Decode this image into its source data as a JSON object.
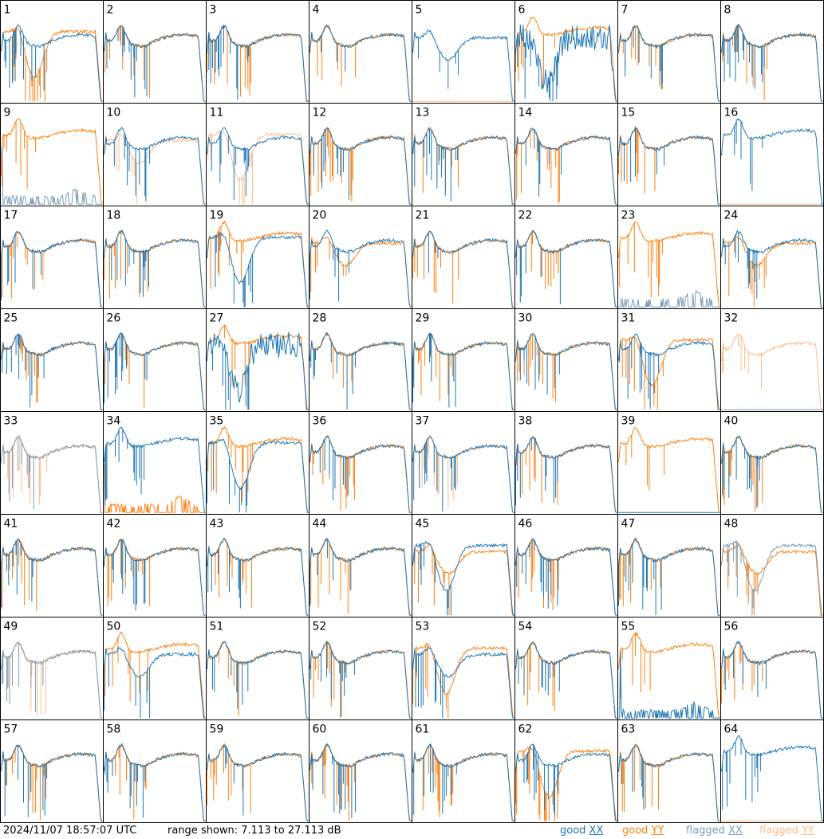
{
  "chart_data": {
    "type": "line",
    "panels": [
      {
        "label": "1",
        "xx": "good",
        "yy": "good",
        "xx_shape": "standard",
        "yy_shape": "dip"
      },
      {
        "label": "2",
        "xx": "good",
        "yy": "good",
        "xx_shape": "standard",
        "yy_shape": "standard"
      },
      {
        "label": "3",
        "xx": "good",
        "yy": "good",
        "xx_shape": "standard",
        "yy_shape": "standard"
      },
      {
        "label": "4",
        "xx": "good",
        "yy": "good",
        "xx_shape": "standard",
        "yy_shape": "standard"
      },
      {
        "label": "5",
        "xx": "good",
        "yy": "flagged",
        "xx_shape": "dip_mild",
        "yy_shape": "flat_low"
      },
      {
        "label": "6",
        "xx": "good",
        "yy": "good",
        "xx_shape": "noisy_dip",
        "yy_shape": "standard_high"
      },
      {
        "label": "7",
        "xx": "good",
        "yy": "good",
        "xx_shape": "standard",
        "yy_shape": "standard"
      },
      {
        "label": "8",
        "xx": "good",
        "yy": "good",
        "xx_shape": "standard",
        "yy_shape": "standard"
      },
      {
        "label": "9",
        "xx": "flagged",
        "yy": "good",
        "xx_shape": "sparse_low",
        "yy_shape": "standard_high"
      },
      {
        "label": "10",
        "xx": "good",
        "yy": "flagged",
        "xx_shape": "standard",
        "yy_shape": "dip_mild"
      },
      {
        "label": "11",
        "xx": "good",
        "yy": "flagged",
        "xx_shape": "standard",
        "yy_shape": "dip"
      },
      {
        "label": "12",
        "xx": "good",
        "yy": "good",
        "xx_shape": "standard",
        "yy_shape": "standard"
      },
      {
        "label": "13",
        "xx": "good",
        "yy": "good",
        "xx_shape": "standard",
        "yy_shape": "standard"
      },
      {
        "label": "14",
        "xx": "good",
        "yy": "good",
        "xx_shape": "standard",
        "yy_shape": "standard"
      },
      {
        "label": "15",
        "xx": "good",
        "yy": "good",
        "xx_shape": "standard",
        "yy_shape": "standard"
      },
      {
        "label": "16",
        "xx": "good",
        "yy": "flagged",
        "xx_shape": "standard_high",
        "yy_shape": "flat_low"
      },
      {
        "label": "17",
        "xx": "good",
        "yy": "good",
        "xx_shape": "standard",
        "yy_shape": "standard"
      },
      {
        "label": "18",
        "xx": "good",
        "yy": "good",
        "xx_shape": "standard",
        "yy_shape": "standard"
      },
      {
        "label": "19",
        "xx": "good",
        "yy": "good",
        "xx_shape": "dip",
        "yy_shape": "standard_high"
      },
      {
        "label": "20",
        "xx": "good",
        "yy": "good",
        "xx_shape": "standard",
        "yy_shape": "dip_mild"
      },
      {
        "label": "21",
        "xx": "good",
        "yy": "good",
        "xx_shape": "standard",
        "yy_shape": "standard"
      },
      {
        "label": "22",
        "xx": "good",
        "yy": "good",
        "xx_shape": "standard",
        "yy_shape": "standard"
      },
      {
        "label": "23",
        "xx": "flagged",
        "yy": "good",
        "xx_shape": "sparse_low",
        "yy_shape": "standard_high"
      },
      {
        "label": "24",
        "xx": "good",
        "yy": "good",
        "xx_shape": "standard",
        "yy_shape": "dip_mild"
      },
      {
        "label": "25",
        "xx": "good",
        "yy": "good",
        "xx_shape": "standard",
        "yy_shape": "standard"
      },
      {
        "label": "26",
        "xx": "good",
        "yy": "good",
        "xx_shape": "standard",
        "yy_shape": "standard"
      },
      {
        "label": "27",
        "xx": "good",
        "yy": "good",
        "xx_shape": "noisy_dip",
        "yy_shape": "standard_high"
      },
      {
        "label": "28",
        "xx": "good",
        "yy": "good",
        "xx_shape": "standard",
        "yy_shape": "standard"
      },
      {
        "label": "29",
        "xx": "good",
        "yy": "good",
        "xx_shape": "standard",
        "yy_shape": "standard"
      },
      {
        "label": "30",
        "xx": "good",
        "yy": "good",
        "xx_shape": "standard",
        "yy_shape": "standard"
      },
      {
        "label": "31",
        "xx": "good",
        "yy": "good",
        "xx_shape": "standard",
        "yy_shape": "dip"
      },
      {
        "label": "32",
        "xx": "flagged",
        "yy": "flagged",
        "xx_shape": "flat_low",
        "yy_shape": "standard"
      },
      {
        "label": "33",
        "xx": "flagged",
        "yy": "flagged",
        "xx_shape": "standard",
        "yy_shape": "standard"
      },
      {
        "label": "34",
        "xx": "good",
        "yy": "good",
        "xx_shape": "standard_high",
        "yy_shape": "sparse_low"
      },
      {
        "label": "35",
        "xx": "good",
        "yy": "good",
        "xx_shape": "dip",
        "yy_shape": "standard_high"
      },
      {
        "label": "36",
        "xx": "good",
        "yy": "good",
        "xx_shape": "standard",
        "yy_shape": "standard"
      },
      {
        "label": "37",
        "xx": "good",
        "yy": "flagged",
        "xx_shape": "standard",
        "yy_shape": "standard"
      },
      {
        "label": "38",
        "xx": "good",
        "yy": "good",
        "xx_shape": "standard",
        "yy_shape": "standard"
      },
      {
        "label": "39",
        "xx": "good",
        "yy": "good",
        "xx_shape": "flat_low",
        "yy_shape": "standard_high"
      },
      {
        "label": "40",
        "xx": "good",
        "yy": "good",
        "xx_shape": "standard",
        "yy_shape": "standard"
      },
      {
        "label": "41",
        "xx": "good",
        "yy": "good",
        "xx_shape": "standard",
        "yy_shape": "standard"
      },
      {
        "label": "42",
        "xx": "good",
        "yy": "good",
        "xx_shape": "standard",
        "yy_shape": "standard"
      },
      {
        "label": "43",
        "xx": "good",
        "yy": "good",
        "xx_shape": "standard",
        "yy_shape": "standard"
      },
      {
        "label": "44",
        "xx": "good",
        "yy": "good",
        "xx_shape": "standard",
        "yy_shape": "standard"
      },
      {
        "label": "45",
        "xx": "good",
        "yy": "good",
        "xx_shape": "dip",
        "yy_shape": "dip_mild"
      },
      {
        "label": "46",
        "xx": "good",
        "yy": "good",
        "xx_shape": "standard",
        "yy_shape": "standard"
      },
      {
        "label": "47",
        "xx": "good",
        "yy": "good",
        "xx_shape": "standard",
        "yy_shape": "standard"
      },
      {
        "label": "48",
        "xx": "flagged",
        "yy": "good",
        "xx_shape": "dip",
        "yy_shape": "dip_mild"
      },
      {
        "label": "49",
        "xx": "flagged",
        "yy": "flagged",
        "xx_shape": "standard",
        "yy_shape": "standard"
      },
      {
        "label": "50",
        "xx": "good",
        "yy": "good",
        "xx_shape": "dip_mild",
        "yy_shape": "standard_high"
      },
      {
        "label": "51",
        "xx": "good",
        "yy": "good",
        "xx_shape": "standard",
        "yy_shape": "standard"
      },
      {
        "label": "52",
        "xx": "good",
        "yy": "good",
        "xx_shape": "standard",
        "yy_shape": "standard"
      },
      {
        "label": "53",
        "xx": "good",
        "yy": "good",
        "xx_shape": "dip_mild",
        "yy_shape": "dip"
      },
      {
        "label": "54",
        "xx": "good",
        "yy": "good",
        "xx_shape": "standard",
        "yy_shape": "standard"
      },
      {
        "label": "55",
        "xx": "good",
        "yy": "good",
        "xx_shape": "sparse_low",
        "yy_shape": "standard_high"
      },
      {
        "label": "56",
        "xx": "good",
        "yy": "good",
        "xx_shape": "standard",
        "yy_shape": "standard"
      },
      {
        "label": "57",
        "xx": "good",
        "yy": "good",
        "xx_shape": "standard",
        "yy_shape": "standard"
      },
      {
        "label": "58",
        "xx": "good",
        "yy": "good",
        "xx_shape": "standard",
        "yy_shape": "standard"
      },
      {
        "label": "59",
        "xx": "good",
        "yy": "good",
        "xx_shape": "standard",
        "yy_shape": "standard"
      },
      {
        "label": "60",
        "xx": "good",
        "yy": "good",
        "xx_shape": "standard",
        "yy_shape": "standard"
      },
      {
        "label": "61",
        "xx": "good",
        "yy": "good",
        "xx_shape": "standard",
        "yy_shape": "standard"
      },
      {
        "label": "62",
        "xx": "good",
        "yy": "good",
        "xx_shape": "standard",
        "yy_shape": "dip"
      },
      {
        "label": "63",
        "xx": "good",
        "yy": "good",
        "xx_shape": "standard",
        "yy_shape": "standard"
      },
      {
        "label": "64",
        "xx": "good",
        "yy": "flagged",
        "xx_shape": "standard_high",
        "yy_shape": "flat_low"
      }
    ],
    "range_db": [
      7.113,
      27.113
    ],
    "grid": false
  },
  "footer": {
    "timestamp": "2024/11/07 18:57:07 UTC",
    "range_text": "range shown: 7.113 to 27.113 dB",
    "legend": [
      {
        "prefix": "good ",
        "pol": "XX",
        "color": "#1f77b4"
      },
      {
        "prefix": "good ",
        "pol": "YY",
        "color": "#ff7f0e"
      },
      {
        "prefix": "flagged ",
        "pol": "XX",
        "color": "#7a9cb8"
      },
      {
        "prefix": "flagged ",
        "pol": "YY",
        "color": "#ffbb88"
      }
    ]
  },
  "colors": {
    "good_xx": "#1f77b4",
    "good_yy": "#ff7f0e",
    "flagged_xx": "#7a9cb8",
    "flagged_yy": "#ffbb88",
    "frame": "#000000"
  }
}
